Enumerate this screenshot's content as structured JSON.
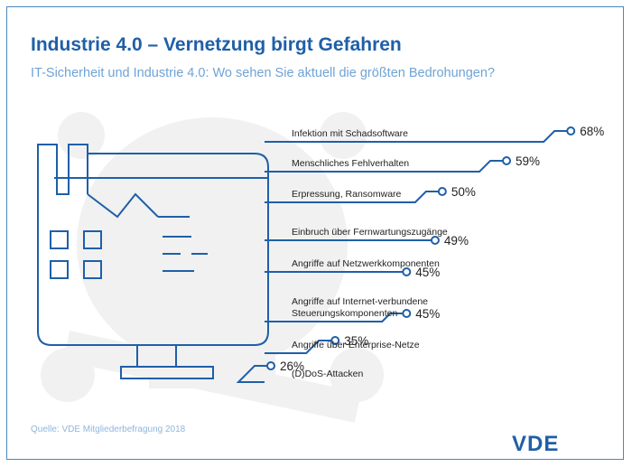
{
  "title": "Industrie 4.0 – Vernetzung birgt Gefahren",
  "subtitle": "IT-Sicherheit und Industrie 4.0: Wo sehen Sie aktuell die größten Bedrohungen?",
  "source": "Quelle: VDE Mitgliederbefragung 2018",
  "brand": "VDE",
  "colors": {
    "primary": "#1f5fa8",
    "accent": "#6fa3d6",
    "line": "#1f5fa8",
    "watermark": "#f1f1f1"
  },
  "chart_data": {
    "type": "bar",
    "title": "Industrie 4.0 – Vernetzung birgt Gefahren",
    "subtitle": "IT-Sicherheit und Industrie 4.0: Wo sehen Sie aktuell die größten Bedrohungen?",
    "unit": "%",
    "categories": [
      "Infektion mit Schadsoftware",
      "Menschliches Fehlverhalten",
      "Erpressung, Ransomware",
      "Einbruch über Fernwartungszugänge",
      "Angriffe auf Netzwerkkomponenten",
      [
        "Angriffe auf Internet-verbundene",
        "Steuerungskomponenten"
      ],
      "Angriffe über Enterprise-Netze",
      "(D)DoS-Attacken"
    ],
    "values": [
      68,
      59,
      50,
      49,
      45,
      45,
      35,
      26
    ],
    "value_labels": [
      "68%",
      "59%",
      "50%",
      "49%",
      "45%",
      "45%",
      "35%",
      "26%"
    ]
  }
}
